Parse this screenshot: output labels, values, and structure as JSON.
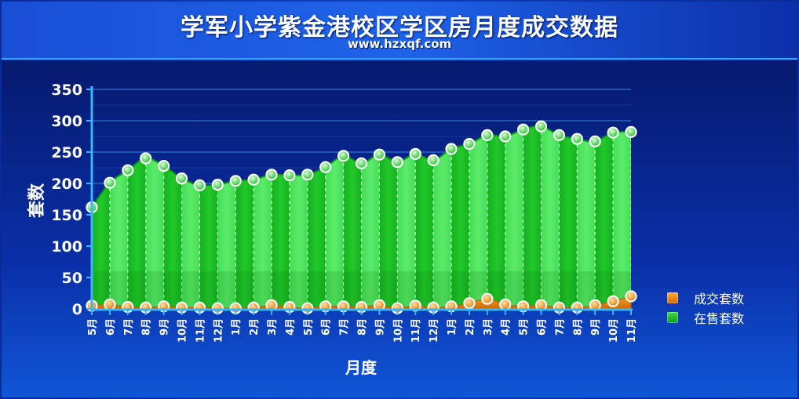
{
  "header": {
    "title": "学军小学紫金港校区学区房月度成交数据",
    "subtitle": "www.hzxqf.com"
  },
  "colors": {
    "sale": "#2fd43a",
    "sale_dark": "#0a9a12",
    "deal": "#f08a10",
    "deal_border": "#d05a00",
    "grid": "#2a8fe6",
    "axis": "#35b6ff"
  },
  "chart_data": {
    "type": "area",
    "xlabel": "月度",
    "ylabel": "套数",
    "ylim": [
      0,
      350
    ],
    "yticks": [
      0,
      50,
      100,
      150,
      200,
      250,
      300,
      350
    ],
    "categories": [
      "5月",
      "6月",
      "7月",
      "8月",
      "9月",
      "10月",
      "11月",
      "12月",
      "1月",
      "2月",
      "3月",
      "4月",
      "5月",
      "6月",
      "7月",
      "8月",
      "9月",
      "10月",
      "11月",
      "12月",
      "1月",
      "2月",
      "3月",
      "4月",
      "5月",
      "6月",
      "7月",
      "8月",
      "9月",
      "10月",
      "11月"
    ],
    "legend_position": "right",
    "grid": true,
    "series": [
      {
        "name": "成交套数",
        "color": "#f08a10",
        "values": [
          5,
          7,
          3,
          2,
          4,
          2,
          2,
          1,
          1,
          2,
          6,
          3,
          1,
          4,
          4,
          3,
          6,
          1,
          5,
          2,
          4,
          9,
          16,
          7,
          4,
          6,
          2,
          2,
          6,
          12,
          20
        ]
      },
      {
        "name": "在售套数",
        "color": "#2fd43a",
        "values": [
          162,
          201,
          221,
          240,
          228,
          208,
          197,
          198,
          204,
          206,
          214,
          213,
          214,
          226,
          244,
          232,
          246,
          234,
          247,
          237,
          255,
          263,
          277,
          275,
          286,
          291,
          277,
          271,
          267,
          281,
          282
        ]
      }
    ]
  }
}
